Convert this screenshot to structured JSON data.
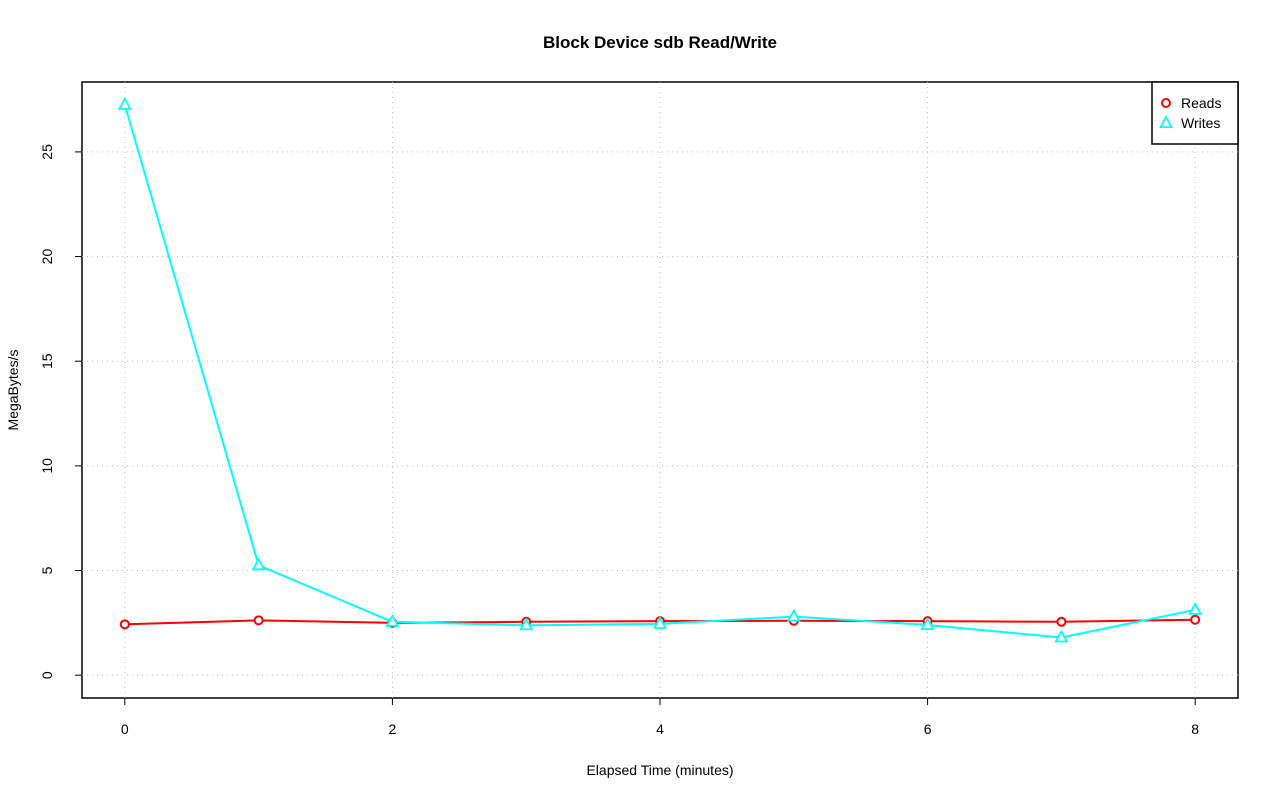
{
  "chart_data": {
    "type": "line",
    "title": "Block Device sdb Read/Write",
    "xlabel": "Elapsed Time (minutes)",
    "ylabel": "MegaBytes/s",
    "x": [
      0,
      1,
      2,
      3,
      4,
      5,
      6,
      7,
      8
    ],
    "series": [
      {
        "name": "Reads",
        "color": "#ff0000",
        "marker": "circle",
        "values": [
          2.43,
          2.62,
          2.5,
          2.55,
          2.58,
          2.6,
          2.58,
          2.55,
          2.65
        ]
      },
      {
        "name": "Writes",
        "color": "#00ffff",
        "marker": "triangle",
        "values": [
          27.25,
          5.25,
          2.55,
          2.38,
          2.45,
          2.8,
          2.4,
          1.8,
          3.12
        ]
      }
    ],
    "xlim": [
      -0.32,
      8.32
    ],
    "ylim": [
      -1.09,
      28.34
    ],
    "xticks": [
      0,
      2,
      4,
      6,
      8
    ],
    "yticks": [
      0,
      5,
      10,
      15,
      20,
      25
    ],
    "grid": true,
    "legend": "top-right"
  }
}
